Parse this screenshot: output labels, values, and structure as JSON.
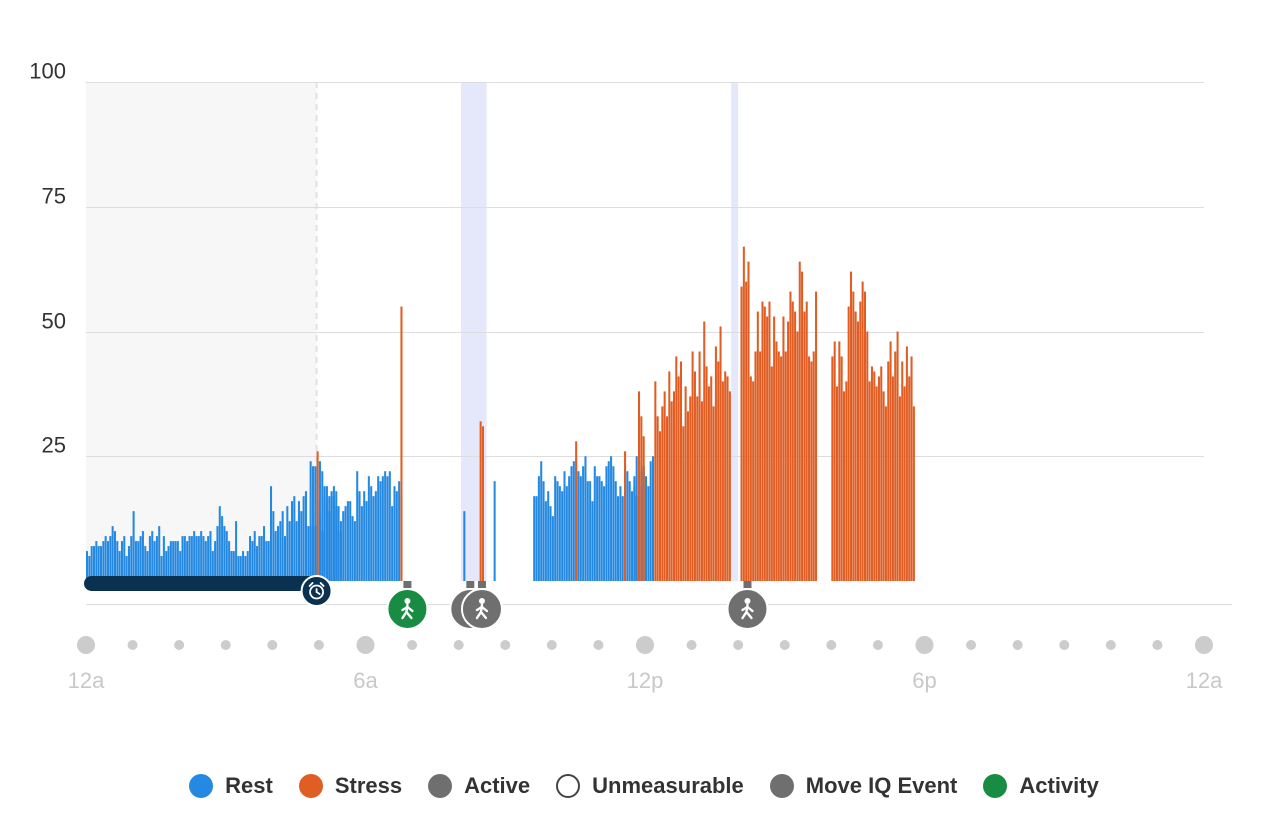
{
  "chart_data": {
    "type": "bar",
    "title": "",
    "xlabel": "",
    "ylabel": "",
    "ylim": [
      0,
      100
    ],
    "yticks": [
      25,
      50,
      75,
      100
    ],
    "xlim_hours": [
      0,
      24
    ],
    "xtick_labels": [
      "12a",
      "6a",
      "12p",
      "6p",
      "12a"
    ],
    "xtick_hours": [
      0,
      6,
      12,
      18,
      24
    ],
    "grid": true,
    "legend_position": "bottom",
    "colors": {
      "rest": "#2589e1",
      "stress": "#e05d23",
      "active": "#6f6f6f",
      "unmeasurable": "#ffffff",
      "move_iq": "#6f6f6f",
      "activity": "#178c42",
      "sleep_bar": "#0b3150",
      "sleep_shade": "#f7f7f7",
      "activity_band": "#e5e8fa",
      "grid": "#dddddd"
    },
    "series": [
      {
        "name": "Rest",
        "color": "#2589e1",
        "segments": [
          {
            "start_hour": 0.0,
            "interval_min": 3,
            "values": [
              6,
              5,
              7,
              7,
              8,
              7,
              7,
              8,
              9,
              8,
              9,
              11,
              10,
              8,
              6,
              8,
              9,
              5,
              7,
              9,
              14,
              8,
              8,
              9,
              10,
              7,
              6,
              9,
              10,
              8,
              9,
              11,
              5,
              9,
              6,
              7,
              8,
              8,
              8,
              8,
              6,
              9,
              9,
              8,
              9,
              9,
              10,
              9,
              9,
              10,
              9,
              8,
              9,
              10,
              6,
              8,
              11,
              15,
              13,
              11,
              10,
              8,
              6,
              6,
              12,
              5,
              5,
              6,
              5,
              6,
              9,
              8,
              10,
              7,
              9,
              9,
              11,
              8,
              8,
              19,
              14,
              10,
              11,
              12,
              14,
              9,
              15,
              12,
              16,
              17,
              12,
              16,
              14,
              17,
              18,
              11,
              11,
              11,
              11,
              16,
              13,
              10,
              17,
              19,
              17,
              18,
              19,
              15,
              10,
              10
            ]
          },
          {
            "start_hour": 4.8,
            "interval_min": 3,
            "values": [
              24,
              23,
              23,
              24,
              24,
              22,
              19,
              16,
              14,
              17,
              17,
              18,
              15,
              12,
              14,
              15,
              16,
              16,
              13,
              12,
              22,
              18,
              15,
              18,
              16,
              21,
              19,
              17,
              18,
              21,
              20,
              21,
              22,
              21,
              22,
              15,
              19,
              18,
              20,
              17
            ]
          },
          {
            "start_hour": 8.1,
            "interval_min": 3,
            "values": [
              14
            ]
          },
          {
            "start_hour": 8.75,
            "interval_min": 3,
            "values": [
              20
            ]
          },
          {
            "start_hour": 9.6,
            "interval_min": 3,
            "values": [
              17,
              17,
              21,
              24,
              20,
              16,
              18,
              15,
              13,
              21,
              20,
              19,
              18,
              22,
              19,
              21,
              23,
              24,
              24,
              22,
              21,
              23,
              25,
              20,
              20,
              16,
              23,
              21,
              21,
              20,
              19,
              23,
              24,
              25,
              23,
              20,
              17,
              19,
              17,
              23,
              22,
              20,
              18,
              19,
              17,
              21,
              19,
              23
            ]
          },
          {
            "start_hour": 11.75,
            "interval_min": 3,
            "values": [
              21,
              25,
              24,
              22,
              23,
              21,
              19,
              24,
              25
            ]
          }
        ]
      },
      {
        "name": "Stress",
        "color": "#e05d23",
        "segments": [
          {
            "start_hour": 4.95,
            "interval_min": 3,
            "values": [
              26
            ]
          },
          {
            "start_hour": 6.75,
            "interval_min": 3,
            "values": [
              55
            ]
          },
          {
            "start_hour": 8.45,
            "interval_min": 3,
            "values": [
              32,
              31
            ]
          },
          {
            "start_hour": 10.5,
            "interval_min": 3,
            "values": [
              28
            ]
          },
          {
            "start_hour": 11.55,
            "interval_min": 3,
            "values": [
              26
            ]
          },
          {
            "start_hour": 11.85,
            "interval_min": 3,
            "values": [
              38,
              33,
              29
            ]
          },
          {
            "start_hour": 12.2,
            "interval_min": 3,
            "values": [
              40,
              33,
              30,
              35,
              38,
              33,
              42,
              36,
              38,
              45,
              41,
              44,
              31,
              39,
              34,
              37,
              46,
              42,
              37,
              46,
              36,
              52,
              43,
              39,
              41,
              35,
              47,
              44,
              51,
              40,
              42,
              41,
              38
            ]
          },
          {
            "start_hour": 14.05,
            "interval_min": 3,
            "values": [
              59,
              67,
              60,
              64,
              41,
              40,
              46,
              54,
              46,
              56,
              55,
              53,
              56,
              43,
              53,
              48,
              46,
              45,
              53,
              46,
              52,
              58,
              56,
              54,
              50,
              64,
              62,
              54,
              56,
              45,
              44,
              46,
              58
            ]
          },
          {
            "start_hour": 16.0,
            "interval_min": 3,
            "values": [
              45,
              48,
              39,
              48,
              45,
              38,
              40,
              55,
              62,
              58,
              54,
              52,
              56,
              60,
              58,
              50,
              40,
              43,
              42,
              39,
              41,
              43,
              38,
              35,
              44,
              48,
              41,
              46,
              50,
              37,
              44,
              39,
              47,
              41,
              45,
              35
            ]
          }
        ]
      }
    ],
    "sleep_period_hours": [
      0,
      4.95
    ],
    "activity_band_hours": [
      [
        8.05,
        8.6
      ],
      [
        13.85,
        14.0
      ]
    ],
    "markers": [
      {
        "type": "sleep-end",
        "icon": "alarm-clock-icon",
        "hour": 4.95
      },
      {
        "type": "activity",
        "icon": "walking-icon",
        "hour": 6.9
      },
      {
        "type": "move-iq",
        "icon": "walking-icon",
        "hour": 8.25
      },
      {
        "type": "move-iq",
        "icon": "walking-icon",
        "hour": 8.5
      },
      {
        "type": "move-iq",
        "icon": "walking-icon",
        "hour": 14.2
      }
    ]
  },
  "legend": [
    {
      "label": "Rest",
      "color": "#2589e1",
      "style": "filled"
    },
    {
      "label": "Stress",
      "color": "#e05d23",
      "style": "filled"
    },
    {
      "label": "Active",
      "color": "#6f6f6f",
      "style": "filled"
    },
    {
      "label": "Unmeasurable",
      "color": "#ffffff",
      "style": "outline"
    },
    {
      "label": "Move IQ Event",
      "color": "#6f6f6f",
      "style": "filled"
    },
    {
      "label": "Activity",
      "color": "#178c42",
      "style": "filled"
    }
  ]
}
